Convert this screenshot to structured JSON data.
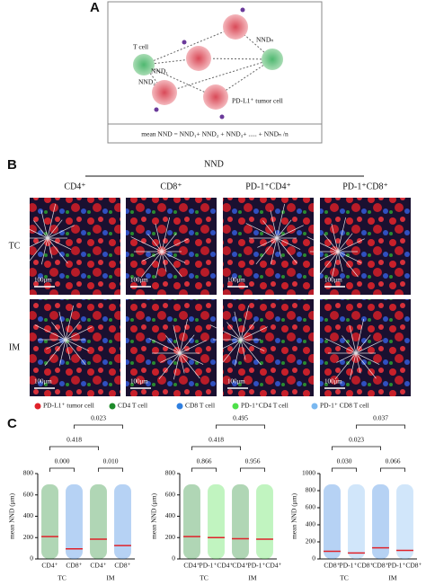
{
  "panel_a": {
    "label": "A",
    "t_cell": "T cell",
    "nnd_1": "NND₁",
    "nnd_2": "NND₂",
    "nnd_n": "NNDₙ",
    "tumor_cell": "PD-L1⁺ tumor cell",
    "formula": "mean NND = NND₁+ NND₂ + NND₃+ ..... + NNDₙ /n"
  },
  "panel_b": {
    "label": "B",
    "header": "NND",
    "columns": [
      "CD4⁺",
      "CD8⁺",
      "PD-1⁺CD4⁺",
      "PD-1⁺CD8⁺"
    ],
    "rows": [
      "TC",
      "IM"
    ],
    "scale_bar": "100μm",
    "legend": [
      {
        "name": "PD-L1⁺ tumor cell",
        "color": "#e0222a"
      },
      {
        "name": "CD4 T cell",
        "color": "#1e8a2a"
      },
      {
        "name": "CD8 T cell",
        "color": "#2f7fe0"
      },
      {
        "name": "PD-1⁺CD4 T cell",
        "color": "#4ee04a"
      },
      {
        "name": "PD-1⁺ CD8 T cell",
        "color": "#7ab8f0"
      }
    ]
  },
  "panel_c": {
    "label": "C"
  },
  "chart_data": [
    {
      "type": "dot",
      "y_label": "mean NND (μm)",
      "categories": [
        "CD4⁺",
        "CD8⁺",
        "CD4⁺",
        "CD8⁺"
      ],
      "colors": [
        "#1e8a2a",
        "#2f7fe0",
        "#1e8a2a",
        "#2f7fe0"
      ],
      "values": [
        210,
        95,
        185,
        125
      ],
      "groups": [
        "TC",
        "IM"
      ],
      "p_values": [
        "0.000",
        "0.010",
        "0.418",
        "0.023"
      ],
      "ylim": [
        0,
        800
      ],
      "yticks": [
        0,
        200,
        400,
        600,
        800
      ]
    },
    {
      "type": "dot",
      "y_label": "mean NND (μm)",
      "categories": [
        "CD4⁺",
        "PD-1⁺CD4⁺",
        "CD4⁺",
        "PD-1⁺CD4⁺"
      ],
      "colors": [
        "#1e8a2a",
        "#4ee04a",
        "#1e8a2a",
        "#4ee04a"
      ],
      "values": [
        210,
        200,
        190,
        185
      ],
      "groups": [
        "TC",
        "IM"
      ],
      "p_values": [
        "0.866",
        "0.956",
        "0.418",
        "0.495"
      ],
      "ylim": [
        0,
        800
      ],
      "yticks": [
        0,
        200,
        400,
        600,
        800
      ]
    },
    {
      "type": "dot",
      "y_label": "mean NND (μm)",
      "categories": [
        "CD8⁺",
        "PD-1⁺CD8⁺",
        "CD8⁺",
        "PD-1⁺CD8⁺"
      ],
      "colors": [
        "#2f7fe0",
        "#7ab8f0",
        "#2f7fe0",
        "#7ab8f0"
      ],
      "values": [
        90,
        70,
        130,
        100
      ],
      "groups": [
        "TC",
        "IM"
      ],
      "p_values": [
        "0.030",
        "0.066",
        "0.023",
        "0.037"
      ],
      "ylim": [
        0,
        1000
      ],
      "yticks": [
        0,
        200,
        400,
        600,
        800,
        1000
      ]
    }
  ]
}
